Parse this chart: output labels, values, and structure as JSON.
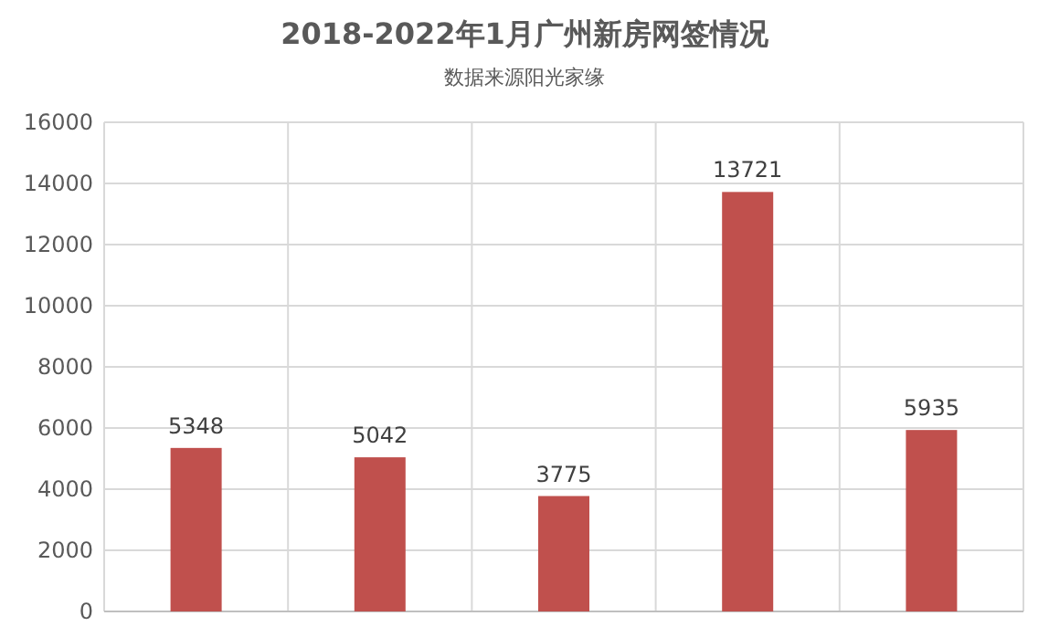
{
  "chart_data": {
    "type": "bar",
    "title": "2018-2022年1月广州新房网签情况",
    "subtitle": "数据来源阳光家缘",
    "categories": [
      null,
      null,
      null,
      null,
      null
    ],
    "values": [
      5348,
      5042,
      3775,
      13721,
      5935
    ],
    "color": "#c0504d",
    "data_labels": true,
    "ylim": [
      0,
      16000
    ],
    "yticks": [
      0,
      2000,
      4000,
      6000,
      8000,
      10000,
      12000,
      14000,
      16000
    ],
    "grid": true
  }
}
